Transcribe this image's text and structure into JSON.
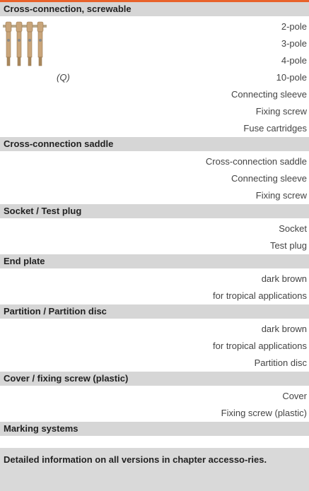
{
  "sections": [
    {
      "title": "Cross-connection, screwable",
      "image_caption": "(Q)",
      "rows": [
        "2-pole",
        "3-pole",
        "4-pole",
        "10-pole",
        "Connecting sleeve",
        "Fixing screw",
        "Fuse cartridges"
      ]
    },
    {
      "title": "Cross-connection saddle",
      "rows": [
        "Cross-connection saddle",
        "Connecting sleeve",
        "Fixing screw"
      ]
    },
    {
      "title": "Socket / Test plug",
      "rows": [
        "Socket",
        "Test plug"
      ]
    },
    {
      "title": "End plate",
      "rows": [
        "dark brown",
        "for tropical applications"
      ]
    },
    {
      "title": "Partition / Partition disc",
      "rows": [
        "dark brown",
        "for tropical applications",
        "Partition disc"
      ]
    },
    {
      "title": "Cover / fixing screw (plastic)",
      "rows": [
        "Cover",
        "Fixing screw (plastic)"
      ]
    },
    {
      "title": "Marking systems",
      "rows": []
    }
  ],
  "footer": "Detailed information on all versions in chapter accesso-ries."
}
